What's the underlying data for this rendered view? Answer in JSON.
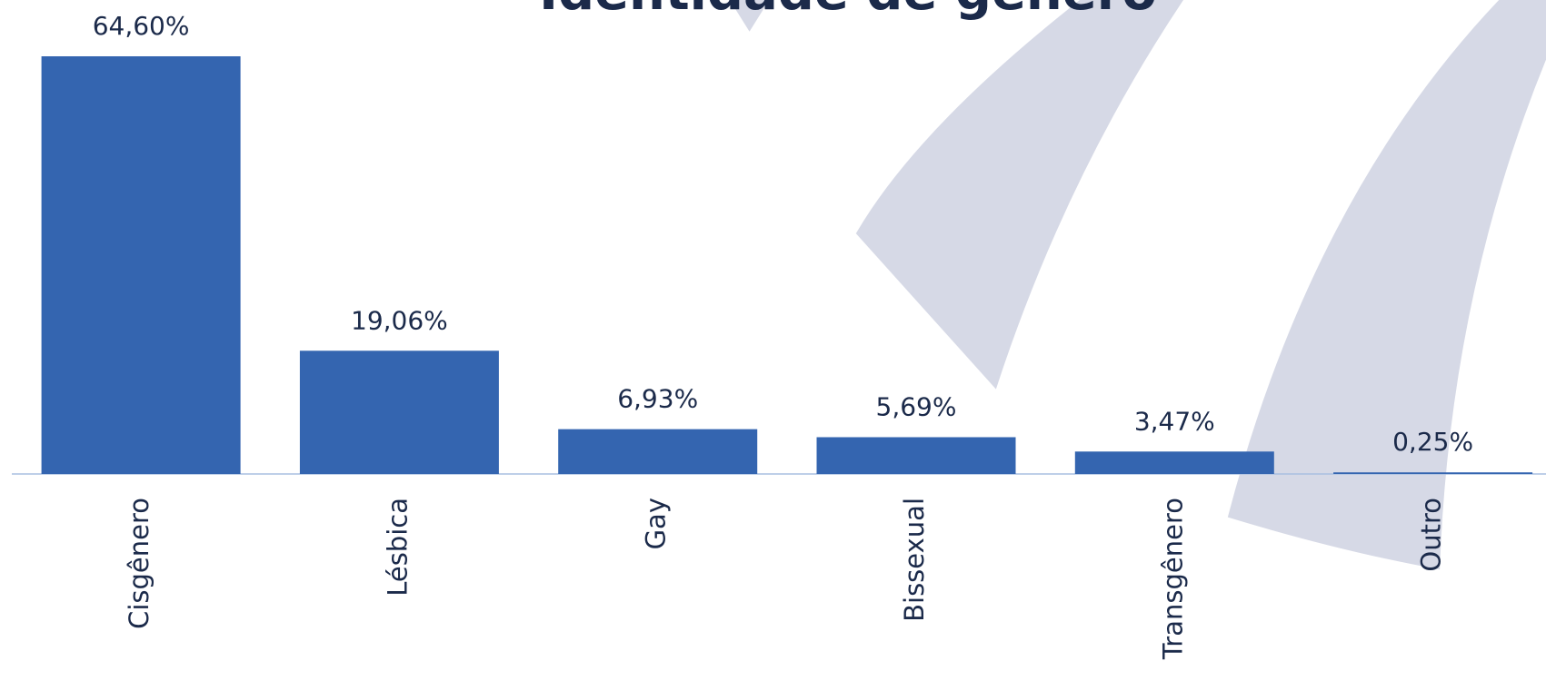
{
  "chart_data": {
    "type": "bar",
    "title": "Identidade de gênero",
    "categories": [
      "Cisgênero",
      "Lésbica",
      "Gay",
      "Bissexual",
      "Transgênero",
      "Outro"
    ],
    "values": [
      64.6,
      19.06,
      6.93,
      5.69,
      3.47,
      0.25
    ],
    "value_labels": [
      "64,60%",
      "19,06%",
      "6,93%",
      "5,69%",
      "3,47%",
      "0,25%"
    ],
    "color": "#3465b0"
  }
}
